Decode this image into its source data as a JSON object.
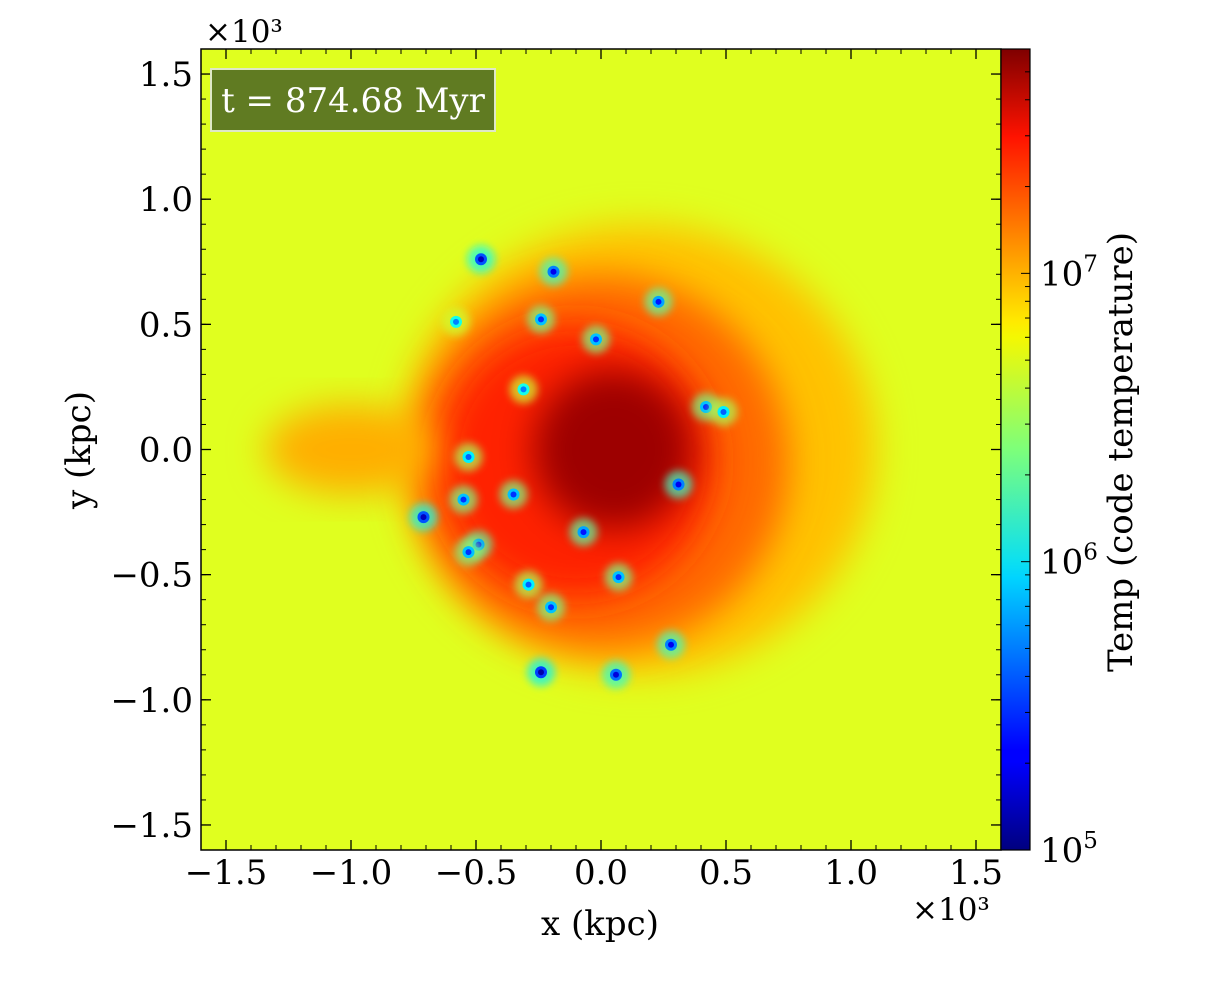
{
  "chart_data": {
    "type": "heatmap",
    "title": "",
    "xlabel": "x  (kpc)",
    "ylabel": "y  (kpc)",
    "x_multiplier": "×10³",
    "y_multiplier": "×10³",
    "xlim": [
      -1.6,
      1.6
    ],
    "ylim": [
      -1.6,
      1.6
    ],
    "x_ticks": [
      -1.5,
      -1.0,
      -0.5,
      0.0,
      0.5,
      1.0,
      1.5
    ],
    "x_tick_labels": [
      "−1.5",
      "−1.0",
      "−0.5",
      "0.0",
      "0.5",
      "1.0",
      "1.5"
    ],
    "y_ticks": [
      -1.5,
      -1.0,
      -0.5,
      0.0,
      0.5,
      1.0,
      1.5
    ],
    "y_tick_labels": [
      "−1.5",
      "−1.0",
      "−0.5",
      "0.0",
      "0.5",
      "1.0",
      "1.5"
    ],
    "annotation": "t = 874.68 Myr",
    "colorbar": {
      "label": "Temp  (code temperature)",
      "scale": "log",
      "range": [
        100000,
        60000000
      ],
      "ticks": [
        100000,
        1000000,
        10000000
      ],
      "tick_labels": [
        {
          "base": "10",
          "exp": "5"
        },
        {
          "base": "10",
          "exp": "6"
        },
        {
          "base": "10",
          "exp": "7"
        }
      ],
      "colormap": "jet"
    },
    "background_temperature": 4500000,
    "regions": [
      {
        "name": "outer-halo",
        "center": [
          0.15,
          0.0
        ],
        "radius": 0.95,
        "temperature": 8000000
      },
      {
        "name": "mid-shell",
        "center": [
          0.0,
          -0.05
        ],
        "radius": 0.75,
        "temperature": 14000000
      },
      {
        "name": "inner-shell",
        "center": [
          -0.1,
          -0.05
        ],
        "radius": 0.55,
        "temperature": 22000000
      },
      {
        "name": "hot-core",
        "center": [
          0.05,
          0.0
        ],
        "radius": 0.32,
        "temperature": 50000000
      },
      {
        "name": "western-tongue",
        "center": [
          -1.0,
          0.0
        ],
        "radius": 0.18,
        "temperature": 9000000
      }
    ],
    "clumps": [
      {
        "x": -0.48,
        "y": 0.76,
        "temperature": 150000
      },
      {
        "x": 0.23,
        "y": 0.59,
        "temperature": 250000
      },
      {
        "x": -0.19,
        "y": 0.71,
        "temperature": 200000
      },
      {
        "x": -0.24,
        "y": 0.52,
        "temperature": 300000
      },
      {
        "x": -0.58,
        "y": 0.51,
        "temperature": 500000
      },
      {
        "x": -0.02,
        "y": 0.44,
        "temperature": 300000
      },
      {
        "x": -0.31,
        "y": 0.24,
        "temperature": 500000
      },
      {
        "x": 0.42,
        "y": 0.17,
        "temperature": 300000
      },
      {
        "x": 0.49,
        "y": 0.15,
        "temperature": 400000
      },
      {
        "x": 0.31,
        "y": -0.14,
        "temperature": 200000
      },
      {
        "x": -0.53,
        "y": -0.03,
        "temperature": 400000
      },
      {
        "x": -0.35,
        "y": -0.18,
        "temperature": 300000
      },
      {
        "x": -0.55,
        "y": -0.2,
        "temperature": 300000
      },
      {
        "x": -0.71,
        "y": -0.27,
        "temperature": 150000
      },
      {
        "x": -0.49,
        "y": -0.38,
        "temperature": 250000
      },
      {
        "x": -0.53,
        "y": -0.41,
        "temperature": 300000
      },
      {
        "x": -0.07,
        "y": -0.33,
        "temperature": 250000
      },
      {
        "x": 0.07,
        "y": -0.51,
        "temperature": 300000
      },
      {
        "x": -0.29,
        "y": -0.54,
        "temperature": 400000
      },
      {
        "x": -0.2,
        "y": -0.63,
        "temperature": 300000
      },
      {
        "x": -0.24,
        "y": -0.89,
        "temperature": 130000
      },
      {
        "x": 0.06,
        "y": -0.9,
        "temperature": 180000
      },
      {
        "x": 0.28,
        "y": -0.78,
        "temperature": 200000
      }
    ]
  }
}
